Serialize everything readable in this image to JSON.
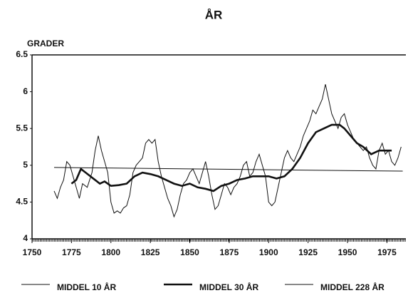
{
  "chart_data": {
    "type": "line",
    "title": "ÅR",
    "ylabel": "GRADER",
    "xlim": [
      1750,
      1987
    ],
    "xticks": [
      1750,
      1775,
      1800,
      1825,
      1850,
      1875,
      1900,
      1925,
      1950,
      1975
    ],
    "ylim": [
      4,
      6.5
    ],
    "yticks": [
      4,
      4.5,
      5,
      5.5,
      6,
      6.5
    ],
    "grid": false,
    "legend": "bottom",
    "series": [
      {
        "name": "MIDDEL 10 ÅR",
        "color": "#111111",
        "width": 1,
        "x": [
          1764,
          1766,
          1768,
          1770,
          1772,
          1774,
          1776,
          1778,
          1780,
          1782,
          1785,
          1788,
          1790,
          1792,
          1794,
          1796,
          1798,
          1800,
          1802,
          1804,
          1806,
          1808,
          1810,
          1812,
          1814,
          1816,
          1818,
          1820,
          1822,
          1824,
          1826,
          1828,
          1830,
          1832,
          1834,
          1836,
          1838,
          1840,
          1842,
          1844,
          1846,
          1848,
          1850,
          1852,
          1854,
          1856,
          1858,
          1860,
          1862,
          1864,
          1866,
          1868,
          1870,
          1872,
          1874,
          1876,
          1878,
          1880,
          1882,
          1884,
          1886,
          1888,
          1890,
          1892,
          1894,
          1896,
          1898,
          1900,
          1902,
          1904,
          1906,
          1908,
          1910,
          1912,
          1914,
          1916,
          1918,
          1920,
          1922,
          1924,
          1926,
          1928,
          1930,
          1932,
          1934,
          1936,
          1938,
          1940,
          1942,
          1944,
          1946,
          1948,
          1950,
          1952,
          1954,
          1956,
          1958,
          1960,
          1962,
          1964,
          1966,
          1968,
          1970,
          1972,
          1974,
          1976,
          1978,
          1980,
          1982,
          1984
        ],
        "values": [
          4.65,
          4.55,
          4.7,
          4.8,
          5.05,
          5.0,
          4.85,
          4.7,
          4.55,
          4.75,
          4.7,
          4.9,
          5.2,
          5.4,
          5.2,
          5.05,
          4.9,
          4.5,
          4.35,
          4.38,
          4.35,
          4.42,
          4.45,
          4.6,
          4.9,
          5.0,
          5.05,
          5.1,
          5.3,
          5.35,
          5.3,
          5.35,
          5.05,
          4.85,
          4.7,
          4.55,
          4.45,
          4.3,
          4.4,
          4.6,
          4.75,
          4.8,
          4.9,
          4.95,
          4.85,
          4.75,
          4.9,
          5.05,
          4.85,
          4.6,
          4.4,
          4.45,
          4.6,
          4.75,
          4.7,
          4.6,
          4.7,
          4.75,
          4.85,
          5.0,
          5.05,
          4.85,
          4.9,
          5.05,
          5.15,
          5.0,
          4.85,
          4.5,
          4.45,
          4.5,
          4.7,
          4.9,
          5.1,
          5.2,
          5.1,
          5.05,
          5.15,
          5.25,
          5.4,
          5.5,
          5.6,
          5.75,
          5.7,
          5.8,
          5.9,
          6.1,
          5.9,
          5.7,
          5.6,
          5.5,
          5.65,
          5.7,
          5.55,
          5.45,
          5.35,
          5.3,
          5.25,
          5.2,
          5.25,
          5.1,
          5.0,
          4.95,
          5.2,
          5.3,
          5.15,
          5.2,
          5.05,
          5.0,
          5.1,
          5.25
        ]
      },
      {
        "name": "MIDDEL 30 ÅR",
        "color": "#111111",
        "width": 2.6,
        "x": [
          1775,
          1778,
          1781,
          1784,
          1787,
          1790,
          1793,
          1796,
          1800,
          1805,
          1810,
          1815,
          1820,
          1825,
          1830,
          1835,
          1840,
          1845,
          1850,
          1855,
          1860,
          1865,
          1870,
          1875,
          1880,
          1885,
          1890,
          1895,
          1900,
          1905,
          1910,
          1915,
          1920,
          1925,
          1930,
          1935,
          1940,
          1945,
          1948,
          1952,
          1956,
          1960,
          1965,
          1970,
          1975,
          1978
        ],
        "values": [
          4.75,
          4.8,
          4.95,
          4.9,
          4.85,
          4.8,
          4.75,
          4.78,
          4.72,
          4.73,
          4.75,
          4.85,
          4.9,
          4.88,
          4.85,
          4.8,
          4.75,
          4.72,
          4.75,
          4.7,
          4.68,
          4.65,
          4.72,
          4.75,
          4.8,
          4.82,
          4.85,
          4.85,
          4.85,
          4.82,
          4.85,
          4.95,
          5.1,
          5.3,
          5.45,
          5.5,
          5.55,
          5.55,
          5.5,
          5.4,
          5.3,
          5.25,
          5.15,
          5.2,
          5.2,
          5.2
        ]
      },
      {
        "name": "MIDDEL 228 ÅR",
        "color": "#111111",
        "width": 1,
        "x": [
          1764,
          1985
        ],
        "values": [
          4.97,
          4.92
        ]
      }
    ]
  }
}
